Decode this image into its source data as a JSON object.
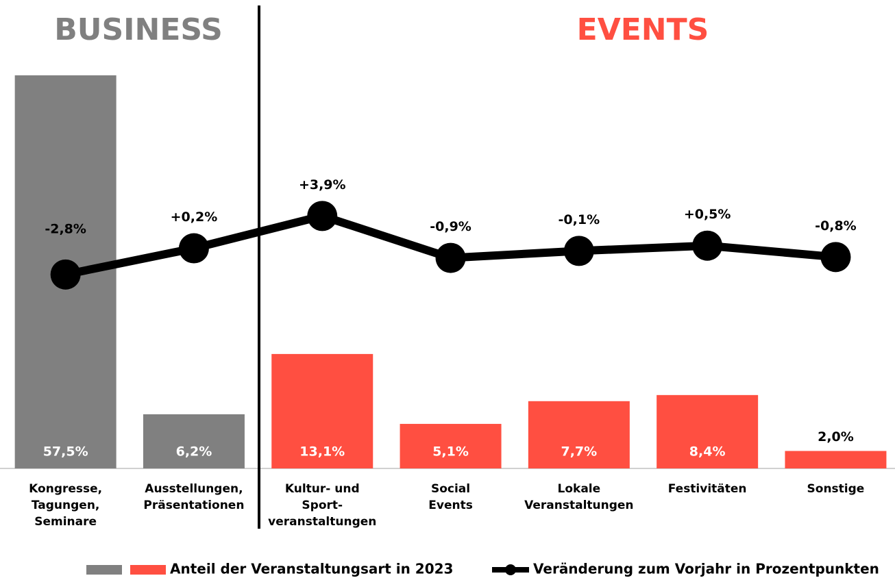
{
  "chart_data": {
    "type": "bar_line",
    "headers": [
      "BUSINESS",
      "EVENTS"
    ],
    "categories": [
      "Kongresse,\nTagungen,\nSeminare",
      "Ausstellungen,\nPräsentationen",
      "Kultur- und\nSport-\nveranstaltungen",
      "Social\nEvents",
      "Lokale\nVeranstaltungen",
      "Festivitäten",
      "Sonstige"
    ],
    "series": [
      {
        "name": "Anteil der Veranstaltungsart in 2023",
        "type": "bar",
        "colors": [
          "#808080",
          "#808080",
          "#ff4f41",
          "#ff4f41",
          "#ff4f41",
          "#ff4f41",
          "#ff4f41"
        ],
        "values": [
          57.5,
          6.2,
          13.1,
          5.1,
          7.7,
          8.4,
          2.0
        ],
        "value_labels": [
          "57,5%",
          "6,2%",
          "13,1%",
          "5,1%",
          "7,7%",
          "8,4%",
          "2,0%"
        ]
      },
      {
        "name": "Veränderung zum Vorjahr in Prozentpunkten",
        "type": "line",
        "axis": "y2",
        "color": "#000000",
        "values": [
          -2.8,
          0.2,
          3.9,
          -0.9,
          -0.1,
          0.5,
          -0.8
        ],
        "value_labels": [
          "-2,8%",
          "+0,2%",
          "+3,9%",
          "-0,9%",
          "-0,1%",
          "+0,5%",
          "-0,8%"
        ]
      }
    ],
    "ylim": [
      0,
      45
    ],
    "y2lim": [
      -25,
      20
    ]
  }
}
